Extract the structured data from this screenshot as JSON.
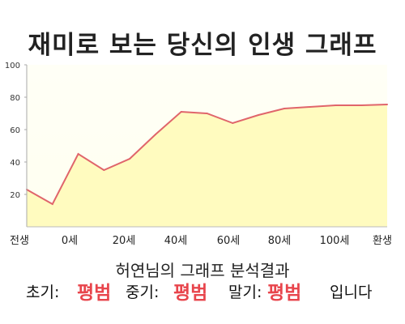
{
  "title": "재미로 보는 당신의 인생 그래프",
  "chart_data": {
    "type": "area",
    "x_tick_labels": [
      "전생",
      "0세",
      "20세",
      "40세",
      "60세",
      "80세",
      "100세",
      "환생"
    ],
    "y_ticks": [
      20,
      40,
      60,
      80,
      100
    ],
    "ylim": [
      0,
      100
    ],
    "grid": false,
    "fill_color": "#fffbbf",
    "line_color": "#e0656b",
    "series": [
      {
        "x": [
          0,
          1,
          2,
          3,
          4,
          5,
          6,
          7,
          8,
          9,
          10,
          11,
          12,
          13,
          14
        ],
        "values": [
          23,
          14,
          45,
          35,
          42,
          57,
          71,
          70,
          64,
          69,
          73,
          74,
          75,
          75,
          75.5
        ]
      }
    ]
  },
  "analysis_text": "허연님의 그래프 분석결과",
  "verdict": {
    "early_label": "초기:",
    "early_value": "평범",
    "mid_label": "중기:",
    "mid_value": "평범",
    "late_label": "말기:",
    "late_value": "평범",
    "ending": "입니다"
  }
}
